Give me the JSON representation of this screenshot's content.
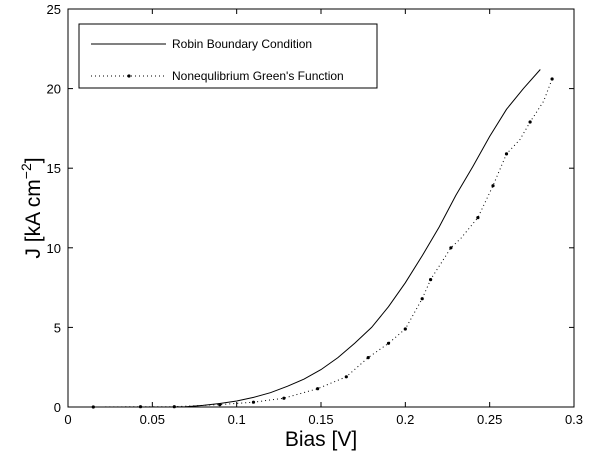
{
  "chart_data": {
    "type": "line",
    "xlabel": "Bias [V]",
    "ylabel": {
      "prefix": "J [kA cm",
      "superscript": "−2",
      "suffix": "]"
    },
    "xlim": [
      0,
      0.3
    ],
    "ylim": [
      0,
      25
    ],
    "x_ticks": [
      "0",
      "0.05",
      "0.1",
      "0.15",
      "0.2",
      "0.25",
      "0.3"
    ],
    "y_ticks": [
      "0",
      "5",
      "10",
      "15",
      "20",
      "25"
    ],
    "x_tick_values": [
      0,
      0.05,
      0.1,
      0.15,
      0.2,
      0.25,
      0.3
    ],
    "y_tick_values": [
      0,
      5,
      10,
      15,
      20,
      25
    ],
    "grid": false,
    "legend_placement": "top-left",
    "series": [
      {
        "name": "Robin Boundary Condition",
        "style": "solid",
        "color": "#000000",
        "x": [
          0.0,
          0.02,
          0.04,
          0.06,
          0.07,
          0.08,
          0.09,
          0.1,
          0.11,
          0.12,
          0.13,
          0.14,
          0.15,
          0.16,
          0.17,
          0.18,
          0.19,
          0.2,
          0.21,
          0.22,
          0.23,
          0.24,
          0.25,
          0.26,
          0.27,
          0.28
        ],
        "y": [
          0.0,
          0.0,
          0.0,
          0.0,
          0.02,
          0.1,
          0.22,
          0.38,
          0.6,
          0.9,
          1.3,
          1.75,
          2.35,
          3.1,
          4.0,
          5.0,
          6.3,
          7.8,
          9.5,
          11.3,
          13.3,
          15.1,
          17.0,
          18.7,
          20.0,
          21.2
        ]
      },
      {
        "name": "Nonequlibrium Green's Function",
        "style": "dotted-with-markers",
        "color": "#000000",
        "x": [
          0.015,
          0.043,
          0.063,
          0.09,
          0.11,
          0.128,
          0.148,
          0.165,
          0.178,
          0.19,
          0.2,
          0.21,
          0.215,
          0.227,
          0.233,
          0.243,
          0.252,
          0.26,
          0.268,
          0.274,
          0.282,
          0.287
        ],
        "y": [
          0.0,
          0.02,
          0.02,
          0.15,
          0.3,
          0.55,
          1.15,
          1.9,
          3.1,
          4.0,
          4.9,
          6.8,
          8.0,
          10.0,
          10.6,
          11.9,
          13.9,
          15.9,
          16.8,
          17.9,
          19.2,
          20.6
        ],
        "marker_x": [
          0.015,
          0.043,
          0.063,
          0.09,
          0.11,
          0.128,
          0.148,
          0.165,
          0.178,
          0.19,
          0.2,
          0.21,
          0.215,
          0.227,
          0.243,
          0.252,
          0.26,
          0.274,
          0.287
        ],
        "marker_y": [
          0.0,
          0.02,
          0.02,
          0.15,
          0.3,
          0.55,
          1.15,
          1.9,
          3.1,
          4.0,
          4.9,
          6.8,
          8.0,
          10.0,
          11.9,
          13.9,
          15.9,
          17.9,
          20.6
        ]
      }
    ]
  }
}
